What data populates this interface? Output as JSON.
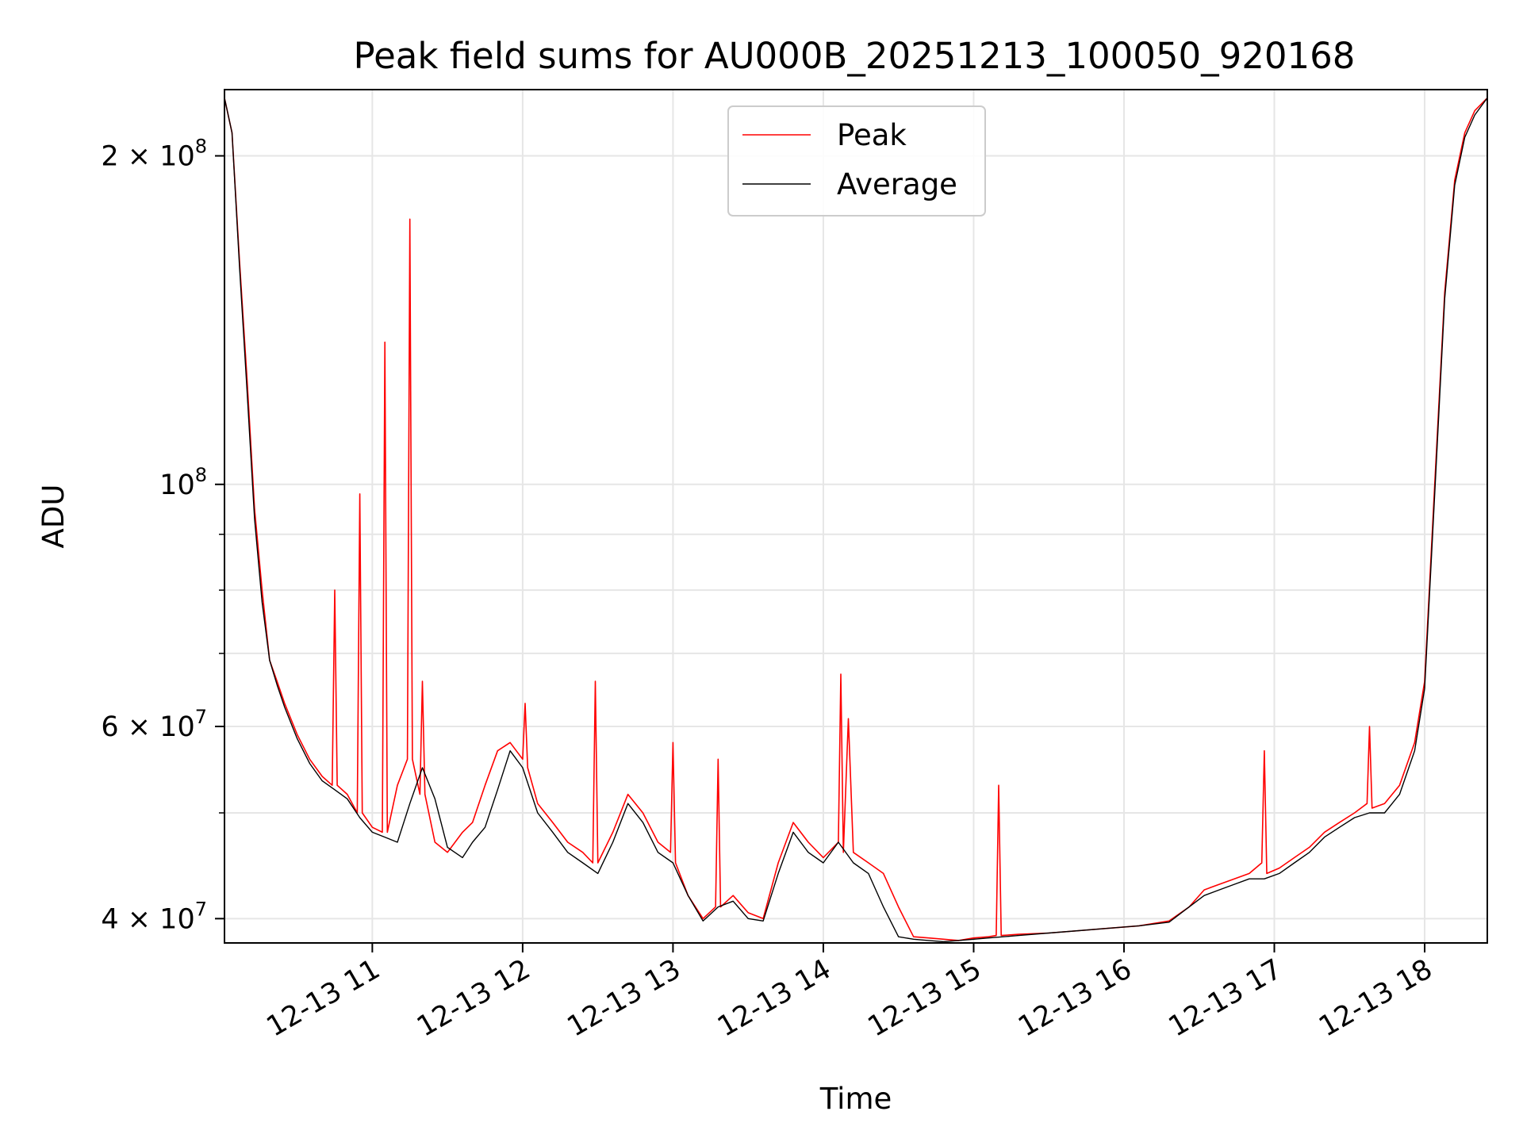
{
  "chart_data": {
    "type": "line",
    "title": "Peak field sums for AU000B_20251213_100050_920168",
    "xlabel": "Time",
    "ylabel": "ADU",
    "yscale": "log",
    "xlim": [
      "2025-12-13 10:01",
      "2025-12-13 18:25"
    ],
    "ylim": [
      38000000,
      230000000
    ],
    "grid": true,
    "legend_position": "upper-center",
    "x_ticks": [
      {
        "value": "2025-12-13 11:00",
        "label": "12-13 11"
      },
      {
        "value": "2025-12-13 12:00",
        "label": "12-13 12"
      },
      {
        "value": "2025-12-13 13:00",
        "label": "12-13 13"
      },
      {
        "value": "2025-12-13 14:00",
        "label": "12-13 14"
      },
      {
        "value": "2025-12-13 15:00",
        "label": "12-13 15"
      },
      {
        "value": "2025-12-13 16:00",
        "label": "12-13 16"
      },
      {
        "value": "2025-12-13 17:00",
        "label": "12-13 17"
      },
      {
        "value": "2025-12-13 18:00",
        "label": "12-13 18"
      }
    ],
    "y_ticks": [
      {
        "value": 40000000,
        "base": "4 × 10",
        "exp": "7"
      },
      {
        "value": 60000000,
        "base": "6 × 10",
        "exp": "7"
      },
      {
        "value": 100000000,
        "base": "10",
        "exp": "8"
      },
      {
        "value": 200000000,
        "base": "2 × 10",
        "exp": "8"
      }
    ],
    "series": [
      {
        "name": "Peak",
        "color": "#ff0000",
        "x": [
          "2025-12-13 10:01",
          "2025-12-13 10:04",
          "2025-12-13 10:07",
          "2025-12-13 10:10",
          "2025-12-13 10:13",
          "2025-12-13 10:16",
          "2025-12-13 10:19",
          "2025-12-13 10:22",
          "2025-12-13 10:25",
          "2025-12-13 10:30",
          "2025-12-13 10:35",
          "2025-12-13 10:40",
          "2025-12-13 10:44",
          "2025-12-13 10:45",
          "2025-12-13 10:46",
          "2025-12-13 10:50",
          "2025-12-13 10:54",
          "2025-12-13 10:55",
          "2025-12-13 10:56",
          "2025-12-13 11:00",
          "2025-12-13 11:04",
          "2025-12-13 11:05",
          "2025-12-13 11:06",
          "2025-12-13 11:10",
          "2025-12-13 11:14",
          "2025-12-13 11:15",
          "2025-12-13 11:16",
          "2025-12-13 11:19",
          "2025-12-13 11:20",
          "2025-12-13 11:21",
          "2025-12-13 11:25",
          "2025-12-13 11:30",
          "2025-12-13 11:36",
          "2025-12-13 11:40",
          "2025-12-13 11:45",
          "2025-12-13 11:50",
          "2025-12-13 11:55",
          "2025-12-13 12:00",
          "2025-12-13 12:01",
          "2025-12-13 12:02",
          "2025-12-13 12:06",
          "2025-12-13 12:12",
          "2025-12-13 12:18",
          "2025-12-13 12:24",
          "2025-12-13 12:28",
          "2025-12-13 12:29",
          "2025-12-13 12:30",
          "2025-12-13 12:36",
          "2025-12-13 12:42",
          "2025-12-13 12:48",
          "2025-12-13 12:54",
          "2025-12-13 12:59",
          "2025-12-13 13:00",
          "2025-12-13 13:01",
          "2025-12-13 13:06",
          "2025-12-13 13:12",
          "2025-12-13 13:17",
          "2025-12-13 13:18",
          "2025-12-13 13:19",
          "2025-12-13 13:24",
          "2025-12-13 13:30",
          "2025-12-13 13:36",
          "2025-12-13 13:42",
          "2025-12-13 13:48",
          "2025-12-13 13:54",
          "2025-12-13 14:00",
          "2025-12-13 14:06",
          "2025-12-13 14:07",
          "2025-12-13 14:08",
          "2025-12-13 14:10",
          "2025-12-13 14:12",
          "2025-12-13 14:18",
          "2025-12-13 14:24",
          "2025-12-13 14:30",
          "2025-12-13 14:36",
          "2025-12-13 14:42",
          "2025-12-13 14:48",
          "2025-12-13 14:54",
          "2025-12-13 15:00",
          "2025-12-13 15:06",
          "2025-12-13 15:09",
          "2025-12-13 15:10",
          "2025-12-13 15:11",
          "2025-12-13 15:18",
          "2025-12-13 15:30",
          "2025-12-13 15:42",
          "2025-12-13 15:54",
          "2025-12-13 16:06",
          "2025-12-13 16:18",
          "2025-12-13 16:26",
          "2025-12-13 16:32",
          "2025-12-13 16:38",
          "2025-12-13 16:44",
          "2025-12-13 16:50",
          "2025-12-13 16:55",
          "2025-12-13 16:56",
          "2025-12-13 16:57",
          "2025-12-13 17:02",
          "2025-12-13 17:08",
          "2025-12-13 17:14",
          "2025-12-13 17:20",
          "2025-12-13 17:26",
          "2025-12-13 17:32",
          "2025-12-13 17:37",
          "2025-12-13 17:38",
          "2025-12-13 17:39",
          "2025-12-13 17:44",
          "2025-12-13 17:50",
          "2025-12-13 17:56",
          "2025-12-13 18:00",
          "2025-12-13 18:04",
          "2025-12-13 18:08",
          "2025-12-13 18:12",
          "2025-12-13 18:16",
          "2025-12-13 18:20",
          "2025-12-13 18:25"
        ],
        "y": [
          226000000,
          210000000,
          160000000,
          125000000,
          95000000,
          80000000,
          69000000,
          66000000,
          63000000,
          59000000,
          56000000,
          54000000,
          53000000,
          80000000,
          53000000,
          52000000,
          50000000,
          98000000,
          50000000,
          48500000,
          48000000,
          135000000,
          48000000,
          53000000,
          56000000,
          175000000,
          56000000,
          52000000,
          66000000,
          52000000,
          47000000,
          46000000,
          48000000,
          49000000,
          53000000,
          57000000,
          58000000,
          56000000,
          63000000,
          55000000,
          51000000,
          49000000,
          47000000,
          46000000,
          45000000,
          66000000,
          45000000,
          48000000,
          52000000,
          50000000,
          47000000,
          46000000,
          58000000,
          45000000,
          42000000,
          40000000,
          41000000,
          56000000,
          41000000,
          42000000,
          40500000,
          40000000,
          45000000,
          49000000,
          47000000,
          45500000,
          47000000,
          67000000,
          46000000,
          61000000,
          46000000,
          45000000,
          44000000,
          41000000,
          38500000,
          38400000,
          38300000,
          38200000,
          38400000,
          38500000,
          38600000,
          53000000,
          38600000,
          38700000,
          38800000,
          39000000,
          39200000,
          39400000,
          39800000,
          41000000,
          42500000,
          43000000,
          43500000,
          44000000,
          45000000,
          57000000,
          44000000,
          44500000,
          45500000,
          46500000,
          48000000,
          49000000,
          50000000,
          51000000,
          60000000,
          50500000,
          51000000,
          53000000,
          58000000,
          66000000,
          100000000,
          150000000,
          190000000,
          210000000,
          220000000,
          226000000
        ]
      },
      {
        "name": "Average",
        "color": "#000000",
        "x": [
          "2025-12-13 10:01",
          "2025-12-13 10:04",
          "2025-12-13 10:07",
          "2025-12-13 10:10",
          "2025-12-13 10:13",
          "2025-12-13 10:16",
          "2025-12-13 10:19",
          "2025-12-13 10:22",
          "2025-12-13 10:25",
          "2025-12-13 10:30",
          "2025-12-13 10:35",
          "2025-12-13 10:40",
          "2025-12-13 10:45",
          "2025-12-13 10:50",
          "2025-12-13 10:55",
          "2025-12-13 11:00",
          "2025-12-13 11:05",
          "2025-12-13 11:10",
          "2025-12-13 11:15",
          "2025-12-13 11:20",
          "2025-12-13 11:25",
          "2025-12-13 11:30",
          "2025-12-13 11:36",
          "2025-12-13 11:40",
          "2025-12-13 11:45",
          "2025-12-13 11:50",
          "2025-12-13 11:55",
          "2025-12-13 12:00",
          "2025-12-13 12:06",
          "2025-12-13 12:12",
          "2025-12-13 12:18",
          "2025-12-13 12:24",
          "2025-12-13 12:30",
          "2025-12-13 12:36",
          "2025-12-13 12:42",
          "2025-12-13 12:48",
          "2025-12-13 12:54",
          "2025-12-13 13:00",
          "2025-12-13 13:06",
          "2025-12-13 13:12",
          "2025-12-13 13:18",
          "2025-12-13 13:24",
          "2025-12-13 13:30",
          "2025-12-13 13:36",
          "2025-12-13 13:42",
          "2025-12-13 13:48",
          "2025-12-13 13:54",
          "2025-12-13 14:00",
          "2025-12-13 14:06",
          "2025-12-13 14:12",
          "2025-12-13 14:18",
          "2025-12-13 14:24",
          "2025-12-13 14:30",
          "2025-12-13 14:36",
          "2025-12-13 14:42",
          "2025-12-13 14:48",
          "2025-12-13 14:54",
          "2025-12-13 15:00",
          "2025-12-13 15:06",
          "2025-12-13 15:18",
          "2025-12-13 15:30",
          "2025-12-13 15:42",
          "2025-12-13 15:54",
          "2025-12-13 16:06",
          "2025-12-13 16:18",
          "2025-12-13 16:26",
          "2025-12-13 16:32",
          "2025-12-13 16:38",
          "2025-12-13 16:44",
          "2025-12-13 16:50",
          "2025-12-13 16:56",
          "2025-12-13 17:02",
          "2025-12-13 17:08",
          "2025-12-13 17:14",
          "2025-12-13 17:20",
          "2025-12-13 17:26",
          "2025-12-13 17:32",
          "2025-12-13 17:38",
          "2025-12-13 17:44",
          "2025-12-13 17:50",
          "2025-12-13 17:56",
          "2025-12-13 18:00",
          "2025-12-13 18:04",
          "2025-12-13 18:08",
          "2025-12-13 18:12",
          "2025-12-13 18:16",
          "2025-12-13 18:20",
          "2025-12-13 18:25"
        ],
        "y": [
          226000000,
          210000000,
          158000000,
          122000000,
          93000000,
          78000000,
          69000000,
          65500000,
          62500000,
          58500000,
          55500000,
          53500000,
          52500000,
          51500000,
          49500000,
          48000000,
          47500000,
          47000000,
          51000000,
          55000000,
          51500000,
          46500000,
          45500000,
          47000000,
          48500000,
          52500000,
          57000000,
          55000000,
          50000000,
          48000000,
          46000000,
          45000000,
          44000000,
          47000000,
          51000000,
          49000000,
          46000000,
          45000000,
          42000000,
          39800000,
          41000000,
          41500000,
          40000000,
          39800000,
          44000000,
          48000000,
          46000000,
          45000000,
          47000000,
          45000000,
          44000000,
          41000000,
          38500000,
          38300000,
          38200000,
          38100000,
          38200000,
          38300000,
          38400000,
          38600000,
          38800000,
          39000000,
          39200000,
          39400000,
          39700000,
          41000000,
          42000000,
          42500000,
          43000000,
          43500000,
          43500000,
          44000000,
          45000000,
          46000000,
          47500000,
          48500000,
          49500000,
          50000000,
          50000000,
          52000000,
          57000000,
          65000000,
          98000000,
          148000000,
          188000000,
          208000000,
          218000000,
          226000000
        ]
      }
    ]
  }
}
